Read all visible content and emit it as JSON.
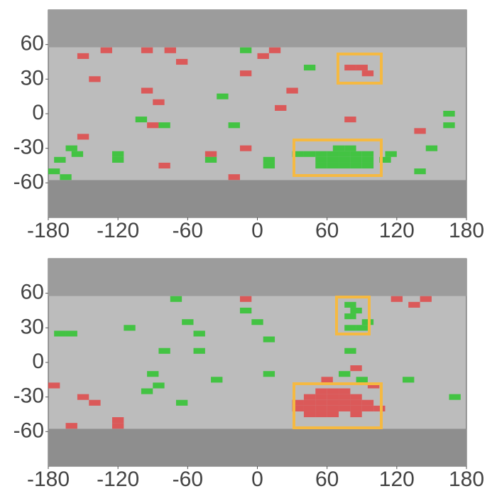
{
  "chart_data": [
    {
      "type": "grid",
      "xlim": [
        -180,
        180
      ],
      "ylim": [
        -90,
        90
      ],
      "xticks": [
        -180,
        -120,
        -60,
        0,
        60,
        120,
        180
      ],
      "yticks": [
        -60,
        -30,
        0,
        30,
        60
      ],
      "series": [
        {
          "color": "#e04848",
          "x": [
            -150,
            -130,
            -95,
            -75,
            -65,
            -140,
            -95,
            -85,
            -150,
            -90,
            -80,
            -40,
            -20,
            -10,
            -10,
            5,
            15,
            20,
            30,
            80,
            140,
            80,
            90,
            95
          ],
          "y": [
            50,
            55,
            55,
            55,
            45,
            30,
            20,
            10,
            -20,
            -10,
            -45,
            -35,
            -55,
            -30,
            35,
            50,
            55,
            5,
            20,
            -5,
            -15,
            40,
            40,
            35
          ]
        },
        {
          "color": "#2ec42e",
          "x": [
            -10,
            45,
            -30,
            -20,
            -160,
            -170,
            -155,
            -175,
            -165,
            -120,
            -120,
            -100,
            -80,
            -40,
            10,
            10,
            165,
            165,
            150,
            140,
            110,
            115,
            35,
            45,
            55,
            65,
            75,
            85,
            95,
            55,
            65,
            75,
            85,
            95,
            55,
            65,
            75,
            85,
            95,
            70,
            80
          ],
          "y": [
            55,
            40,
            15,
            -10,
            -30,
            -40,
            -35,
            -50,
            -55,
            -35,
            -40,
            -5,
            -10,
            -40,
            -40,
            -45,
            0,
            -10,
            -30,
            -50,
            -40,
            -35,
            -35,
            -35,
            -35,
            -35,
            -35,
            -35,
            -35,
            -40,
            -40,
            -40,
            -40,
            -40,
            -45,
            -45,
            -45,
            -45,
            -45,
            -30,
            -30
          ]
        }
      ]
    },
    {
      "type": "grid",
      "xlim": [
        -180,
        180
      ],
      "ylim": [
        -90,
        90
      ],
      "xticks": [
        -180,
        -120,
        -60,
        0,
        60,
        120,
        180
      ],
      "yticks": [
        -60,
        -30,
        0,
        30,
        60
      ],
      "series": [
        {
          "color": "#e04848",
          "x": [
            -10,
            120,
            135,
            145,
            -175,
            -150,
            -140,
            -160,
            -120,
            -120,
            85,
            60,
            100,
            55,
            65,
            75,
            45,
            55,
            65,
            75,
            85,
            35,
            45,
            55,
            65,
            75,
            85,
            95,
            35,
            45,
            55,
            65,
            75,
            85,
            95,
            105,
            45,
            55,
            65,
            85
          ],
          "y": [
            55,
            55,
            50,
            55,
            -20,
            -30,
            -35,
            -55,
            -50,
            -55,
            -5,
            -15,
            -20,
            -25,
            -25,
            -25,
            -30,
            -30,
            -30,
            -30,
            -30,
            -35,
            -35,
            -35,
            -35,
            -35,
            -35,
            -35,
            -40,
            -40,
            -40,
            -40,
            -40,
            -40,
            -40,
            -40,
            -45,
            -45,
            -45,
            -45
          ]
        },
        {
          "color": "#2ec42e",
          "x": [
            -70,
            -10,
            0,
            10,
            -170,
            -160,
            -110,
            -60,
            -50,
            -80,
            -50,
            -90,
            -85,
            -95,
            -65,
            -35,
            10,
            80,
            75,
            90,
            130,
            170,
            80,
            80,
            85,
            95,
            80,
            90
          ],
          "y": [
            55,
            45,
            35,
            20,
            25,
            25,
            30,
            35,
            25,
            10,
            10,
            -10,
            -20,
            -25,
            -35,
            -15,
            -10,
            10,
            -10,
            -15,
            -15,
            -30,
            50,
            40,
            45,
            35,
            30,
            30
          ]
        }
      ]
    }
  ]
}
